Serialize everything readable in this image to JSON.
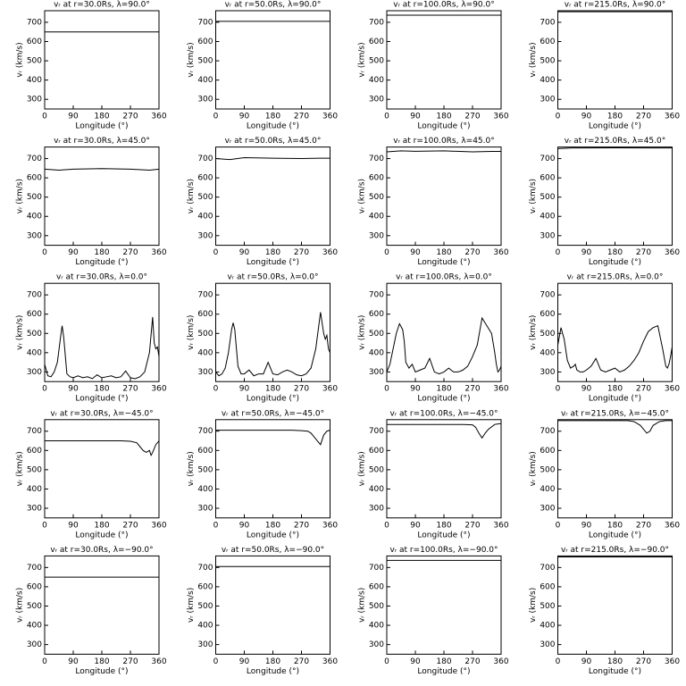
{
  "chart_data": [
    {
      "type": "line",
      "title": "vᵣ at r=30.0Rs, λ=90.0°",
      "xlabel": "Longitude (°)",
      "ylabel": "vᵣ (km/s)",
      "x": [
        0,
        360
      ],
      "values": [
        650,
        650
      ],
      "color": "#000000",
      "xlim": [
        0,
        360
      ],
      "ylim": [
        250,
        760
      ],
      "xticks": [
        0,
        90,
        180,
        270,
        360
      ],
      "yticks": [
        300,
        400,
        500,
        600,
        700
      ]
    },
    {
      "type": "line",
      "title": "vᵣ at r=50.0Rs, λ=90.0°",
      "xlabel": "Longitude (°)",
      "ylabel": "vᵣ (km/s)",
      "x": [
        0,
        360
      ],
      "values": [
        705,
        705
      ],
      "color": "#000000",
      "xlim": [
        0,
        360
      ],
      "ylim": [
        250,
        760
      ],
      "xticks": [
        0,
        90,
        180,
        270,
        360
      ],
      "yticks": [
        300,
        400,
        500,
        600,
        700
      ]
    },
    {
      "type": "line",
      "title": "vᵣ at r=100.0Rs, λ=90.0°",
      "xlabel": "Longitude (°)",
      "ylabel": "vᵣ (km/s)",
      "x": [
        0,
        360
      ],
      "values": [
        737,
        737
      ],
      "color": "#000000",
      "xlim": [
        0,
        360
      ],
      "ylim": [
        250,
        760
      ],
      "xticks": [
        0,
        90,
        180,
        270,
        360
      ],
      "yticks": [
        300,
        400,
        500,
        600,
        700
      ]
    },
    {
      "type": "line",
      "title": "vᵣ at r=215.0Rs, λ=90.0°",
      "xlabel": "Longitude (°)",
      "ylabel": "vᵣ (km/s)",
      "x": [
        0,
        360
      ],
      "values": [
        755,
        755
      ],
      "color": "#000000",
      "xlim": [
        0,
        360
      ],
      "ylim": [
        250,
        760
      ],
      "xticks": [
        0,
        90,
        180,
        270,
        360
      ],
      "yticks": [
        300,
        400,
        500,
        600,
        700
      ]
    },
    {
      "type": "line",
      "title": "vᵣ at r=30.0Rs, λ=45.0°",
      "xlabel": "Longitude (°)",
      "ylabel": "vᵣ (km/s)",
      "x": [
        0,
        45,
        90,
        180,
        270,
        330,
        360
      ],
      "values": [
        645,
        640,
        645,
        648,
        645,
        640,
        645
      ],
      "color": "#000000",
      "xlim": [
        0,
        360
      ],
      "ylim": [
        250,
        760
      ],
      "xticks": [
        0,
        90,
        180,
        270,
        360
      ],
      "yticks": [
        300,
        400,
        500,
        600,
        700
      ]
    },
    {
      "type": "line",
      "title": "vᵣ at r=50.0Rs, λ=45.0°",
      "xlabel": "Longitude (°)",
      "ylabel": "vᵣ (km/s)",
      "x": [
        0,
        45,
        90,
        180,
        270,
        330,
        360
      ],
      "values": [
        700,
        695,
        705,
        702,
        700,
        702,
        702
      ],
      "color": "#000000",
      "xlim": [
        0,
        360
      ],
      "ylim": [
        250,
        760
      ],
      "xticks": [
        0,
        90,
        180,
        270,
        360
      ],
      "yticks": [
        300,
        400,
        500,
        600,
        700
      ]
    },
    {
      "type": "line",
      "title": "vᵣ at r=100.0Rs, λ=45.0°",
      "xlabel": "Longitude (°)",
      "ylabel": "vᵣ (km/s)",
      "x": [
        0,
        45,
        90,
        180,
        270,
        330,
        360
      ],
      "values": [
        735,
        740,
        738,
        740,
        735,
        737,
        737
      ],
      "color": "#000000",
      "xlim": [
        0,
        360
      ],
      "ylim": [
        250,
        760
      ],
      "xticks": [
        0,
        90,
        180,
        270,
        360
      ],
      "yticks": [
        300,
        400,
        500,
        600,
        700
      ]
    },
    {
      "type": "line",
      "title": "vᵣ at r=215.0Rs, λ=45.0°",
      "xlabel": "Longitude (°)",
      "ylabel": "vᵣ (km/s)",
      "x": [
        0,
        45,
        90,
        180,
        270,
        330,
        360
      ],
      "values": [
        752,
        755,
        755,
        756,
        755,
        755,
        755
      ],
      "color": "#000000",
      "xlim": [
        0,
        360
      ],
      "ylim": [
        250,
        760
      ],
      "xticks": [
        0,
        90,
        180,
        270,
        360
      ],
      "yticks": [
        300,
        400,
        500,
        600,
        700
      ]
    },
    {
      "type": "line",
      "title": "vᵣ at r=30.0Rs, λ=0.0°",
      "xlabel": "Longitude (°)",
      "ylabel": "vᵣ (km/s)",
      "x": [
        0,
        10,
        20,
        30,
        40,
        50,
        55,
        60,
        70,
        80,
        90,
        105,
        120,
        135,
        150,
        165,
        180,
        195,
        210,
        225,
        240,
        255,
        270,
        285,
        300,
        315,
        330,
        340,
        345,
        350,
        355,
        360
      ],
      "values": [
        340,
        280,
        275,
        300,
        350,
        480,
        540,
        480,
        290,
        275,
        270,
        280,
        270,
        275,
        265,
        285,
        270,
        275,
        280,
        270,
        275,
        305,
        270,
        265,
        275,
        300,
        400,
        585,
        450,
        420,
        430,
        380
      ],
      "color": "#000000",
      "xlim": [
        0,
        360
      ],
      "ylim": [
        250,
        760
      ],
      "xticks": [
        0,
        90,
        180,
        270,
        360
      ],
      "yticks": [
        300,
        400,
        500,
        600,
        700
      ]
    },
    {
      "type": "line",
      "title": "vᵣ at r=50.0Rs, λ=0.0°",
      "xlabel": "Longitude (°)",
      "ylabel": "vᵣ (km/s)",
      "x": [
        0,
        10,
        20,
        30,
        40,
        50,
        55,
        60,
        70,
        80,
        90,
        105,
        120,
        135,
        150,
        165,
        180,
        195,
        210,
        225,
        240,
        255,
        270,
        285,
        300,
        315,
        330,
        340,
        345,
        350,
        355,
        360
      ],
      "values": [
        300,
        280,
        290,
        320,
        400,
        520,
        555,
        520,
        330,
        290,
        290,
        310,
        280,
        290,
        290,
        350,
        290,
        285,
        300,
        310,
        300,
        285,
        280,
        290,
        320,
        420,
        610,
        500,
        470,
        490,
        420,
        400
      ],
      "color": "#000000",
      "xlim": [
        0,
        360
      ],
      "ylim": [
        250,
        760
      ],
      "xticks": [
        0,
        90,
        180,
        270,
        360
      ],
      "yticks": [
        300,
        400,
        500,
        600,
        700
      ]
    },
    {
      "type": "line",
      "title": "vᵣ at r=100.0Rs, λ=0.0°",
      "xlabel": "Longitude (°)",
      "ylabel": "vᵣ (km/s)",
      "x": [
        0,
        10,
        20,
        30,
        40,
        50,
        55,
        60,
        70,
        80,
        90,
        105,
        120,
        135,
        150,
        165,
        180,
        195,
        210,
        225,
        240,
        255,
        270,
        285,
        300,
        315,
        330,
        340,
        345,
        350,
        355,
        360
      ],
      "values": [
        300,
        340,
        420,
        500,
        550,
        520,
        460,
        350,
        320,
        340,
        300,
        310,
        320,
        370,
        300,
        290,
        300,
        320,
        300,
        300,
        310,
        330,
        380,
        440,
        580,
        540,
        500,
        400,
        340,
        300,
        310,
        330
      ],
      "color": "#000000",
      "xlim": [
        0,
        360
      ],
      "ylim": [
        250,
        760
      ],
      "xticks": [
        0,
        90,
        180,
        270,
        360
      ],
      "yticks": [
        300,
        400,
        500,
        600,
        700
      ]
    },
    {
      "type": "line",
      "title": "vᵣ at r=215.0Rs, λ=0.0°",
      "xlabel": "Longitude (°)",
      "ylabel": "vᵣ (km/s)",
      "x": [
        0,
        10,
        20,
        30,
        40,
        50,
        55,
        60,
        70,
        80,
        90,
        105,
        120,
        135,
        150,
        165,
        180,
        195,
        210,
        225,
        240,
        255,
        270,
        285,
        300,
        315,
        330,
        340,
        345,
        350,
        355,
        360
      ],
      "values": [
        440,
        530,
        470,
        360,
        320,
        330,
        340,
        310,
        300,
        300,
        310,
        330,
        370,
        310,
        300,
        310,
        320,
        300,
        310,
        330,
        360,
        400,
        460,
        510,
        530,
        540,
        420,
        330,
        320,
        340,
        380,
        430
      ],
      "color": "#000000",
      "xlim": [
        0,
        360
      ],
      "ylim": [
        250,
        760
      ],
      "xticks": [
        0,
        90,
        180,
        270,
        360
      ],
      "yticks": [
        300,
        400,
        500,
        600,
        700
      ]
    },
    {
      "type": "line",
      "title": "vᵣ at r=30.0Rs, λ=−45.0°",
      "xlabel": "Longitude (°)",
      "ylabel": "vᵣ (km/s)",
      "x": [
        0,
        240,
        270,
        290,
        300,
        310,
        320,
        330,
        335,
        340,
        350,
        360
      ],
      "values": [
        650,
        650,
        648,
        640,
        620,
        600,
        590,
        600,
        575,
        590,
        630,
        650
      ],
      "color": "#000000",
      "xlim": [
        0,
        360
      ],
      "ylim": [
        250,
        760
      ],
      "xticks": [
        0,
        90,
        180,
        270,
        360
      ],
      "yticks": [
        300,
        400,
        500,
        600,
        700
      ]
    },
    {
      "type": "line",
      "title": "vᵣ at r=50.0Rs, λ=−45.0°",
      "xlabel": "Longitude (°)",
      "ylabel": "vᵣ (km/s)",
      "x": [
        0,
        240,
        270,
        290,
        300,
        310,
        320,
        325,
        330,
        340,
        350,
        360
      ],
      "values": [
        705,
        705,
        703,
        700,
        690,
        670,
        650,
        640,
        630,
        680,
        700,
        705
      ],
      "color": "#000000",
      "xlim": [
        0,
        360
      ],
      "ylim": [
        250,
        760
      ],
      "xticks": [
        0,
        90,
        180,
        270,
        360
      ],
      "yticks": [
        300,
        400,
        500,
        600,
        700
      ]
    },
    {
      "type": "line",
      "title": "vᵣ at r=100.0Rs, λ=−45.0°",
      "xlabel": "Longitude (°)",
      "ylabel": "vᵣ (km/s)",
      "x": [
        0,
        240,
        270,
        280,
        290,
        300,
        310,
        320,
        340,
        360
      ],
      "values": [
        735,
        735,
        733,
        720,
        690,
        665,
        690,
        710,
        735,
        740
      ],
      "color": "#000000",
      "xlim": [
        0,
        360
      ],
      "ylim": [
        250,
        760
      ],
      "xticks": [
        0,
        90,
        180,
        270,
        360
      ],
      "yticks": [
        300,
        400,
        500,
        600,
        700
      ]
    },
    {
      "type": "line",
      "title": "vᵣ at r=215.0Rs, λ=−45.0°",
      "xlabel": "Longitude (°)",
      "ylabel": "vᵣ (km/s)",
      "x": [
        0,
        220,
        240,
        260,
        270,
        280,
        290,
        300,
        320,
        340,
        360
      ],
      "values": [
        755,
        755,
        750,
        730,
        710,
        690,
        700,
        730,
        750,
        755,
        755
      ],
      "color": "#000000",
      "xlim": [
        0,
        360
      ],
      "ylim": [
        250,
        760
      ],
      "xticks": [
        0,
        90,
        180,
        270,
        360
      ],
      "yticks": [
        300,
        400,
        500,
        600,
        700
      ]
    },
    {
      "type": "line",
      "title": "vᵣ at r=30.0Rs, λ=−90.0°",
      "xlabel": "Longitude (°)",
      "ylabel": "vᵣ (km/s)",
      "x": [
        0,
        360
      ],
      "values": [
        650,
        650
      ],
      "color": "#000000",
      "xlim": [
        0,
        360
      ],
      "ylim": [
        250,
        760
      ],
      "xticks": [
        0,
        90,
        180,
        270,
        360
      ],
      "yticks": [
        300,
        400,
        500,
        600,
        700
      ]
    },
    {
      "type": "line",
      "title": "vᵣ at r=50.0Rs, λ=−90.0°",
      "xlabel": "Longitude (°)",
      "ylabel": "vᵣ (km/s)",
      "x": [
        0,
        360
      ],
      "values": [
        705,
        705
      ],
      "color": "#000000",
      "xlim": [
        0,
        360
      ],
      "ylim": [
        250,
        760
      ],
      "xticks": [
        0,
        90,
        180,
        270,
        360
      ],
      "yticks": [
        300,
        400,
        500,
        600,
        700
      ]
    },
    {
      "type": "line",
      "title": "vᵣ at r=100.0Rs, λ=−90.0°",
      "xlabel": "Longitude (°)",
      "ylabel": "vᵣ (km/s)",
      "x": [
        0,
        360
      ],
      "values": [
        737,
        737
      ],
      "color": "#000000",
      "xlim": [
        0,
        360
      ],
      "ylim": [
        250,
        760
      ],
      "xticks": [
        0,
        90,
        180,
        270,
        360
      ],
      "yticks": [
        300,
        400,
        500,
        600,
        700
      ]
    },
    {
      "type": "line",
      "title": "vᵣ at r=215.0Rs, λ=−90.0°",
      "xlabel": "Longitude (°)",
      "ylabel": "vᵣ (km/s)",
      "x": [
        0,
        360
      ],
      "values": [
        755,
        755
      ],
      "color": "#000000",
      "xlim": [
        0,
        360
      ],
      "ylim": [
        250,
        760
      ],
      "xticks": [
        0,
        90,
        180,
        270,
        360
      ],
      "yticks": [
        300,
        400,
        500,
        600,
        700
      ]
    }
  ]
}
